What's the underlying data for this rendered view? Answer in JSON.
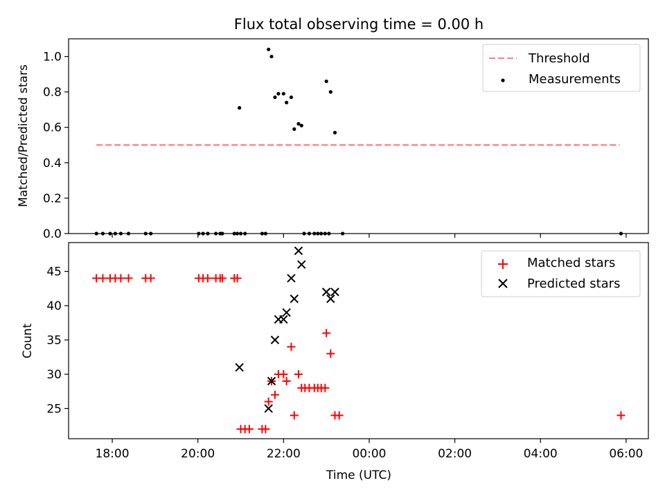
{
  "chart_data": [
    {
      "type": "scatter",
      "title": "Flux total observing time = 0.00 h",
      "xlabel": "",
      "ylabel": "Matched/Predicted stars",
      "xlim_hours": [
        16.98,
        30.52
      ],
      "ylim": [
        0.0,
        1.1
      ],
      "yticks": [
        0.0,
        0.2,
        0.4,
        0.6,
        0.8,
        1.0
      ],
      "ytick_labels": [
        "0.0",
        "0.2",
        "0.4",
        "0.6",
        "0.8",
        "1.0"
      ],
      "legend_position": "top-right",
      "legend": [
        "Threshold",
        "Measurements"
      ],
      "threshold": {
        "label": "Threshold",
        "value": 0.5,
        "x_from": 17.63,
        "x_to": 29.85,
        "color": "#ff7f7f"
      },
      "series": [
        {
          "name": "Measurements",
          "marker": "dot",
          "color": "#000000",
          "points": [
            [
              17.63,
              0.0
            ],
            [
              17.78,
              0.0
            ],
            [
              17.95,
              0.0
            ],
            [
              18.07,
              0.0
            ],
            [
              18.2,
              0.0
            ],
            [
              18.38,
              0.0
            ],
            [
              18.78,
              0.0
            ],
            [
              18.9,
              0.0
            ],
            [
              20.02,
              0.0
            ],
            [
              20.12,
              0.0
            ],
            [
              20.23,
              0.0
            ],
            [
              20.42,
              0.0
            ],
            [
              20.52,
              0.0
            ],
            [
              20.57,
              0.0
            ],
            [
              20.85,
              0.0
            ],
            [
              20.92,
              0.0
            ],
            [
              21.0,
              0.0
            ],
            [
              21.1,
              0.0
            ],
            [
              21.5,
              0.0
            ],
            [
              21.58,
              0.0
            ],
            [
              22.48,
              0.0
            ],
            [
              22.6,
              0.0
            ],
            [
              22.72,
              0.0
            ],
            [
              22.8,
              0.0
            ],
            [
              22.88,
              0.0
            ],
            [
              22.97,
              0.0
            ],
            [
              23.06,
              0.0
            ],
            [
              23.38,
              0.0
            ],
            [
              29.88,
              0.0
            ],
            [
              20.97,
              0.71
            ],
            [
              21.65,
              1.04
            ],
            [
              21.72,
              1.0
            ],
            [
              21.8,
              0.77
            ],
            [
              21.88,
              0.79
            ],
            [
              22.0,
              0.79
            ],
            [
              22.07,
              0.74
            ],
            [
              22.18,
              0.77
            ],
            [
              22.25,
              0.59
            ],
            [
              22.35,
              0.62
            ],
            [
              22.42,
              0.61
            ],
            [
              23.0,
              0.86
            ],
            [
              23.1,
              0.8
            ],
            [
              23.2,
              0.57
            ]
          ]
        }
      ]
    },
    {
      "type": "scatter",
      "title": "",
      "xlabel": "Time (UTC)",
      "ylabel": "Count",
      "xlim_hours": [
        16.98,
        30.52
      ],
      "ylim": [
        20.6,
        49.2
      ],
      "yticks": [
        25,
        30,
        35,
        40,
        45
      ],
      "ytick_labels": [
        "25",
        "30",
        "35",
        "40",
        "45"
      ],
      "xticks_hours": [
        18,
        20,
        22,
        24,
        26,
        28,
        30
      ],
      "xtick_labels": [
        "18:00",
        "20:00",
        "22:00",
        "00:00",
        "02:00",
        "04:00",
        "06:00"
      ],
      "legend_position": "top-right",
      "legend": [
        "Matched stars",
        "Predicted stars"
      ],
      "series": [
        {
          "name": "Matched stars",
          "marker": "plus",
          "color": "#ff0000",
          "points": [
            [
              17.63,
              44
            ],
            [
              17.78,
              44
            ],
            [
              17.95,
              44
            ],
            [
              18.07,
              44
            ],
            [
              18.2,
              44
            ],
            [
              18.38,
              44
            ],
            [
              18.78,
              44
            ],
            [
              18.9,
              44
            ],
            [
              20.02,
              44
            ],
            [
              20.12,
              44
            ],
            [
              20.23,
              44
            ],
            [
              20.42,
              44
            ],
            [
              20.52,
              44
            ],
            [
              20.57,
              44
            ],
            [
              20.85,
              44
            ],
            [
              20.92,
              44
            ],
            [
              21.0,
              22
            ],
            [
              21.1,
              22
            ],
            [
              21.2,
              22
            ],
            [
              21.5,
              22
            ],
            [
              21.58,
              22
            ],
            [
              21.65,
              26
            ],
            [
              21.72,
              29
            ],
            [
              21.8,
              27
            ],
            [
              21.88,
              30
            ],
            [
              22.0,
              30
            ],
            [
              22.07,
              29
            ],
            [
              22.18,
              34
            ],
            [
              22.25,
              24
            ],
            [
              22.35,
              30
            ],
            [
              22.42,
              28
            ],
            [
              22.5,
              28
            ],
            [
              22.6,
              28
            ],
            [
              22.72,
              28
            ],
            [
              22.8,
              28
            ],
            [
              22.88,
              28
            ],
            [
              22.97,
              28
            ],
            [
              23.0,
              36
            ],
            [
              23.1,
              33
            ],
            [
              23.2,
              24
            ],
            [
              23.3,
              24
            ],
            [
              29.88,
              24
            ]
          ]
        },
        {
          "name": "Predicted stars",
          "marker": "x",
          "color": "#000000",
          "points": [
            [
              20.97,
              31
            ],
            [
              21.65,
              25
            ],
            [
              21.72,
              29
            ],
            [
              21.8,
              35
            ],
            [
              21.88,
              38
            ],
            [
              22.0,
              38
            ],
            [
              22.07,
              39
            ],
            [
              22.18,
              44
            ],
            [
              22.25,
              41
            ],
            [
              22.35,
              48
            ],
            [
              22.42,
              46
            ],
            [
              23.0,
              42
            ],
            [
              23.1,
              41
            ],
            [
              23.2,
              42
            ]
          ]
        }
      ]
    }
  ]
}
